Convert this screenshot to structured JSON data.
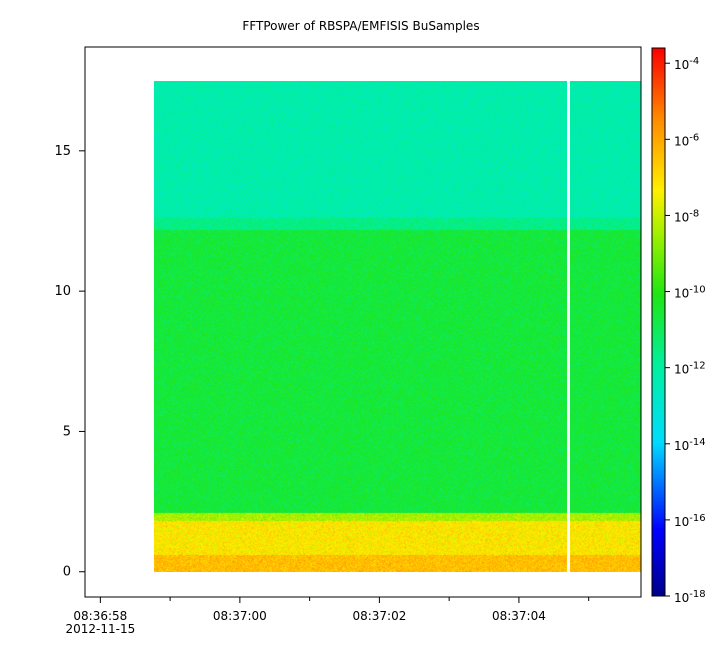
{
  "chart_data": {
    "type": "heatmap",
    "title": "FFTPower of RBSPA/EMFISIS  BuSamples",
    "xlabel": "",
    "ylabel": "",
    "x_axis": {
      "ticks": [
        {
          "t": 0,
          "label": "08:36:58",
          "sublabel": "2012-11-15"
        },
        {
          "t": 2,
          "label": "08:37:00",
          "sublabel": ""
        },
        {
          "t": 4,
          "label": "08:37:02",
          "sublabel": ""
        },
        {
          "t": 6,
          "label": "08:37:04",
          "sublabel": ""
        }
      ],
      "minor_ticks": [
        1,
        3,
        5,
        7
      ],
      "range_seconds": [
        -0.22,
        7.75
      ]
    },
    "y_axis": {
      "ticks": [
        0,
        5,
        10,
        15
      ],
      "range": [
        -0.9,
        18.7
      ]
    },
    "data_extent": {
      "t_start": 0.77,
      "t_end": 7.75,
      "f_min": 0.0,
      "f_max": 17.5
    },
    "gap": {
      "t": 6.7
    },
    "bands": [
      {
        "f_min": 0.0,
        "f_max": 0.6,
        "log10_power": -6.4,
        "spread": 0.6
      },
      {
        "f_min": 0.6,
        "f_max": 1.8,
        "log10_power": -7.2,
        "spread": 0.7
      },
      {
        "f_min": 1.8,
        "f_max": 2.1,
        "log10_power": -8.4,
        "spread": 0.6
      },
      {
        "f_min": 2.1,
        "f_max": 12.2,
        "log10_power": -10.6,
        "spread": 0.55
      },
      {
        "f_min": 12.2,
        "f_max": 12.6,
        "log10_power": -11.6,
        "spread": 0.5
      },
      {
        "f_min": 12.6,
        "f_max": 17.5,
        "log10_power": -12.2,
        "spread": 0.45
      }
    ],
    "colorbar": {
      "scale": "log",
      "range_log10": [
        -18,
        -3.6
      ],
      "ticks": [
        {
          "exp": -4,
          "label": "10",
          "sup": "-4"
        },
        {
          "exp": -6,
          "label": "10",
          "sup": "-6"
        },
        {
          "exp": -8,
          "label": "10",
          "sup": "-8"
        },
        {
          "exp": -10,
          "label": "10",
          "sup": "-10"
        },
        {
          "exp": -12,
          "label": "10",
          "sup": "-12"
        },
        {
          "exp": -14,
          "label": "10",
          "sup": "-14"
        },
        {
          "exp": -16,
          "label": "10",
          "sup": "-16"
        },
        {
          "exp": -18,
          "label": "10",
          "sup": "-18"
        }
      ],
      "colormap": "rainbow"
    },
    "grid": false
  }
}
